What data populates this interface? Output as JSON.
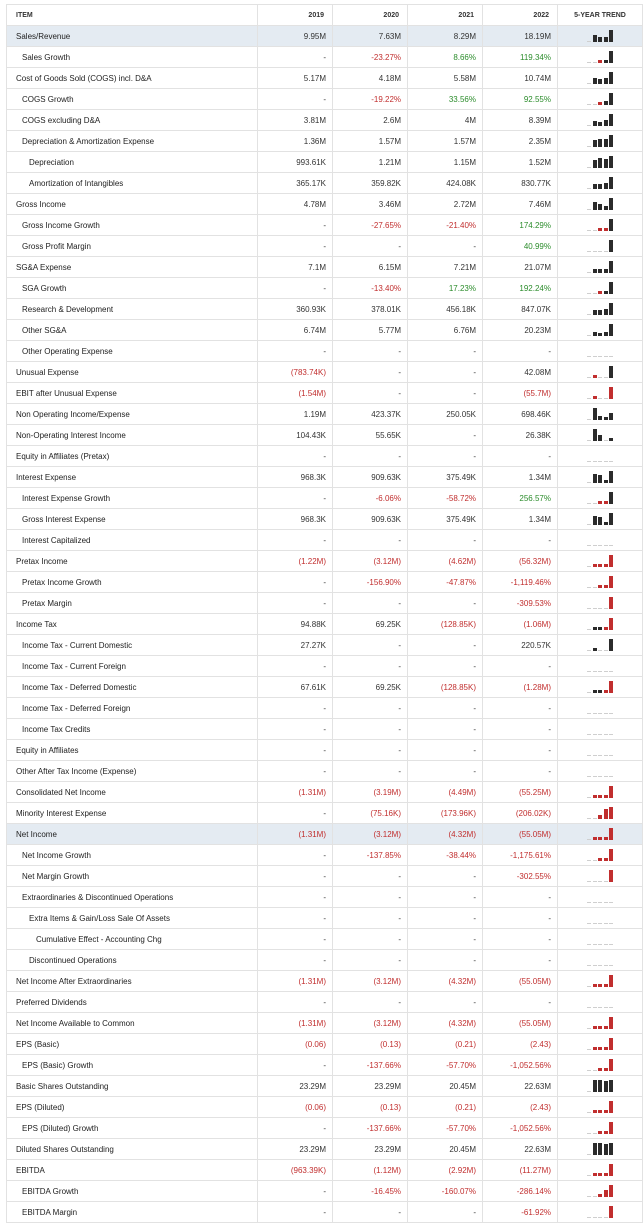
{
  "header": {
    "item": "ITEM",
    "years": [
      "2019",
      "2020",
      "2021",
      "2022"
    ],
    "trend": "5-YEAR TREND"
  },
  "rows": [
    {
      "label": "Sales/Revenue",
      "level": 0,
      "highlight": true,
      "values": [
        "9.95M",
        "7.63M",
        "8.29M",
        "18.19M"
      ],
      "spark": [
        9.95,
        7.63,
        8.29,
        18.19
      ]
    },
    {
      "label": "Sales Growth",
      "level": 1,
      "values": [
        "-",
        "-23.27%",
        "8.66%",
        "119.34%"
      ],
      "spark": [
        0,
        -23.27,
        8.66,
        119.34
      ]
    },
    {
      "label": "Cost of Goods Sold (COGS) incl. D&A",
      "level": 0,
      "values": [
        "5.17M",
        "4.18M",
        "5.58M",
        "10.74M"
      ],
      "spark": [
        5.17,
        4.18,
        5.58,
        10.74
      ]
    },
    {
      "label": "COGS Growth",
      "level": 1,
      "values": [
        "-",
        "-19.22%",
        "33.56%",
        "92.55%"
      ],
      "spark": [
        0,
        -19.22,
        33.56,
        92.55
      ]
    },
    {
      "label": "COGS excluding D&A",
      "level": 1,
      "values": [
        "3.81M",
        "2.6M",
        "4M",
        "8.39M"
      ],
      "spark": [
        3.81,
        2.6,
        4,
        8.39
      ]
    },
    {
      "label": "Depreciation & Amortization Expense",
      "level": 1,
      "values": [
        "1.36M",
        "1.57M",
        "1.57M",
        "2.35M"
      ],
      "spark": [
        1.36,
        1.57,
        1.57,
        2.35
      ]
    },
    {
      "label": "Depreciation",
      "level": 2,
      "values": [
        "993.61K",
        "1.21M",
        "1.15M",
        "1.52M"
      ],
      "spark": [
        0.99,
        1.21,
        1.15,
        1.52
      ]
    },
    {
      "label": "Amortization of Intangibles",
      "level": 2,
      "values": [
        "365.17K",
        "359.82K",
        "424.08K",
        "830.77K"
      ],
      "spark": [
        365,
        360,
        424,
        831
      ]
    },
    {
      "label": "Gross Income",
      "level": 0,
      "values": [
        "4.78M",
        "3.46M",
        "2.72M",
        "7.46M"
      ],
      "spark": [
        4.78,
        3.46,
        2.72,
        7.46
      ]
    },
    {
      "label": "Gross Income Growth",
      "level": 1,
      "values": [
        "-",
        "-27.65%",
        "-21.40%",
        "174.29%"
      ],
      "spark": [
        0,
        -27.65,
        -21.4,
        174.29
      ]
    },
    {
      "label": "Gross Profit Margin",
      "level": 1,
      "values": [
        "-",
        "-",
        "-",
        "40.99%"
      ],
      "spark": [
        0,
        0,
        0,
        40.99
      ]
    },
    {
      "label": "SG&A Expense",
      "level": 0,
      "values": [
        "7.1M",
        "6.15M",
        "7.21M",
        "21.07M"
      ],
      "spark": [
        7.1,
        6.15,
        7.21,
        21.07
      ]
    },
    {
      "label": "SGA Growth",
      "level": 1,
      "values": [
        "-",
        "-13.40%",
        "17.23%",
        "192.24%"
      ],
      "spark": [
        0,
        -13.4,
        17.23,
        192.24
      ]
    },
    {
      "label": "Research & Development",
      "level": 1,
      "values": [
        "360.93K",
        "378.01K",
        "456.18K",
        "847.07K"
      ],
      "spark": [
        361,
        378,
        456,
        847
      ]
    },
    {
      "label": "Other SG&A",
      "level": 1,
      "values": [
        "6.74M",
        "5.77M",
        "6.76M",
        "20.23M"
      ],
      "spark": [
        6.74,
        5.77,
        6.76,
        20.23
      ]
    },
    {
      "label": "Other Operating Expense",
      "level": 1,
      "values": [
        "-",
        "-",
        "-",
        "-"
      ],
      "spark": [
        0,
        0,
        0,
        0
      ]
    },
    {
      "label": "Unusual Expense",
      "level": 0,
      "values": [
        "(783.74K)",
        "-",
        "-",
        "42.08M"
      ],
      "spark": [
        -0.78,
        0,
        0,
        42.08
      ]
    },
    {
      "label": "EBIT after Unusual Expense",
      "level": 0,
      "values": [
        "(1.54M)",
        "-",
        "-",
        "(55.7M)"
      ],
      "spark": [
        -1.54,
        0,
        0,
        -55.7
      ]
    },
    {
      "label": "Non Operating Income/Expense",
      "level": 0,
      "values": [
        "1.19M",
        "423.37K",
        "250.05K",
        "698.46K"
      ],
      "spark": [
        1.19,
        0.42,
        0.25,
        0.7
      ]
    },
    {
      "label": "Non-Operating Interest Income",
      "level": 0,
      "values": [
        "104.43K",
        "55.65K",
        "-",
        "26.38K"
      ],
      "spark": [
        104.43,
        55.65,
        0,
        26.38
      ]
    },
    {
      "label": "Equity in Affiliates (Pretax)",
      "level": 0,
      "values": [
        "-",
        "-",
        "-",
        "-"
      ],
      "spark": [
        0,
        0,
        0,
        0
      ]
    },
    {
      "label": "Interest Expense",
      "level": 0,
      "values": [
        "968.3K",
        "909.63K",
        "375.49K",
        "1.34M"
      ],
      "spark": [
        968,
        910,
        375,
        1340
      ]
    },
    {
      "label": "Interest Expense Growth",
      "level": 1,
      "values": [
        "-",
        "-6.06%",
        "-58.72%",
        "256.57%"
      ],
      "spark": [
        0,
        -6.06,
        -58.72,
        256.57
      ]
    },
    {
      "label": "Gross Interest Expense",
      "level": 1,
      "values": [
        "968.3K",
        "909.63K",
        "375.49K",
        "1.34M"
      ],
      "spark": [
        968,
        910,
        375,
        1340
      ]
    },
    {
      "label": "Interest Capitalized",
      "level": 1,
      "values": [
        "-",
        "-",
        "-",
        "-"
      ],
      "spark": [
        0,
        0,
        0,
        0
      ]
    },
    {
      "label": "Pretax Income",
      "level": 0,
      "values": [
        "(1.22M)",
        "(3.12M)",
        "(4.62M)",
        "(56.32M)"
      ],
      "spark": [
        -1.22,
        -3.12,
        -4.62,
        -56.32
      ]
    },
    {
      "label": "Pretax Income Growth",
      "level": 1,
      "values": [
        "-",
        "-156.90%",
        "-47.87%",
        "-1,119.46%"
      ],
      "spark": [
        0,
        -156.9,
        -47.87,
        -1119.46
      ]
    },
    {
      "label": "Pretax Margin",
      "level": 1,
      "values": [
        "-",
        "-",
        "-",
        "-309.53%"
      ],
      "spark": [
        0,
        0,
        0,
        -309.53
      ]
    },
    {
      "label": "Income Tax",
      "level": 0,
      "values": [
        "94.88K",
        "69.25K",
        "(128.85K)",
        "(1.06M)"
      ],
      "spark": [
        94.88,
        69.25,
        -128.85,
        -1060
      ]
    },
    {
      "label": "Income Tax - Current Domestic",
      "level": 1,
      "values": [
        "27.27K",
        "-",
        "-",
        "220.57K"
      ],
      "spark": [
        27.27,
        0,
        0,
        220.57
      ]
    },
    {
      "label": "Income Tax - Current Foreign",
      "level": 1,
      "values": [
        "-",
        "-",
        "-",
        "-"
      ],
      "spark": [
        0,
        0,
        0,
        0
      ]
    },
    {
      "label": "Income Tax - Deferred Domestic",
      "level": 1,
      "values": [
        "67.61K",
        "69.25K",
        "(128.85K)",
        "(1.28M)"
      ],
      "spark": [
        67.61,
        69.25,
        -128.85,
        -1280
      ]
    },
    {
      "label": "Income Tax - Deferred Foreign",
      "level": 1,
      "values": [
        "-",
        "-",
        "-",
        "-"
      ],
      "spark": [
        0,
        0,
        0,
        0
      ]
    },
    {
      "label": "Income Tax Credits",
      "level": 1,
      "values": [
        "-",
        "-",
        "-",
        "-"
      ],
      "spark": [
        0,
        0,
        0,
        0
      ]
    },
    {
      "label": "Equity in Affiliates",
      "level": 0,
      "values": [
        "-",
        "-",
        "-",
        "-"
      ],
      "spark": [
        0,
        0,
        0,
        0
      ]
    },
    {
      "label": "Other After Tax Income (Expense)",
      "level": 0,
      "values": [
        "-",
        "-",
        "-",
        "-"
      ],
      "spark": [
        0,
        0,
        0,
        0
      ]
    },
    {
      "label": "Consolidated Net Income",
      "level": 0,
      "values": [
        "(1.31M)",
        "(3.19M)",
        "(4.49M)",
        "(55.25M)"
      ],
      "spark": [
        -1.31,
        -3.19,
        -4.49,
        -55.25
      ]
    },
    {
      "label": "Minority Interest Expense",
      "level": 0,
      "values": [
        "-",
        "(75.16K)",
        "(173.96K)",
        "(206.02K)"
      ],
      "spark": [
        0,
        -75.16,
        -173.96,
        -206.02
      ]
    },
    {
      "label": "Net Income",
      "level": 0,
      "highlight": true,
      "values": [
        "(1.31M)",
        "(3.12M)",
        "(4.32M)",
        "(55.05M)"
      ],
      "spark": [
        -1.31,
        -3.12,
        -4.32,
        -55.05
      ]
    },
    {
      "label": "Net Income Growth",
      "level": 1,
      "values": [
        "-",
        "-137.85%",
        "-38.44%",
        "-1,175.61%"
      ],
      "spark": [
        0,
        -137.85,
        -38.44,
        -1175.61
      ]
    },
    {
      "label": "Net Margin Growth",
      "level": 1,
      "values": [
        "-",
        "-",
        "-",
        "-302.55%"
      ],
      "spark": [
        0,
        0,
        0,
        -302.55
      ]
    },
    {
      "label": "Extraordinaries & Discontinued Operations",
      "level": 1,
      "values": [
        "-",
        "-",
        "-",
        "-"
      ],
      "spark": [
        0,
        0,
        0,
        0
      ]
    },
    {
      "label": "Extra Items & Gain/Loss Sale Of Assets",
      "level": 2,
      "values": [
        "-",
        "-",
        "-",
        "-"
      ],
      "spark": [
        0,
        0,
        0,
        0
      ]
    },
    {
      "label": "Cumulative Effect - Accounting Chg",
      "level": 3,
      "values": [
        "-",
        "-",
        "-",
        "-"
      ],
      "spark": [
        0,
        0,
        0,
        0
      ]
    },
    {
      "label": "Discontinued Operations",
      "level": 2,
      "values": [
        "-",
        "-",
        "-",
        "-"
      ],
      "spark": [
        0,
        0,
        0,
        0
      ]
    },
    {
      "label": "Net Income After Extraordinaries",
      "level": 0,
      "values": [
        "(1.31M)",
        "(3.12M)",
        "(4.32M)",
        "(55.05M)"
      ],
      "spark": [
        -1.31,
        -3.12,
        -4.32,
        -55.05
      ]
    },
    {
      "label": "Preferred Dividends",
      "level": 0,
      "values": [
        "-",
        "-",
        "-",
        "-"
      ],
      "spark": [
        0,
        0,
        0,
        0
      ]
    },
    {
      "label": "Net Income Available to Common",
      "level": 0,
      "values": [
        "(1.31M)",
        "(3.12M)",
        "(4.32M)",
        "(55.05M)"
      ],
      "spark": [
        -1.31,
        -3.12,
        -4.32,
        -55.05
      ]
    },
    {
      "label": "EPS (Basic)",
      "level": 0,
      "values": [
        "(0.06)",
        "(0.13)",
        "(0.21)",
        "(2.43)"
      ],
      "spark": [
        -0.06,
        -0.13,
        -0.21,
        -2.43
      ]
    },
    {
      "label": "EPS (Basic) Growth",
      "level": 1,
      "values": [
        "-",
        "-137.66%",
        "-57.70%",
        "-1,052.56%"
      ],
      "spark": [
        0,
        -137.66,
        -57.7,
        -1052.56
      ]
    },
    {
      "label": "Basic Shares Outstanding",
      "level": 0,
      "values": [
        "23.29M",
        "23.29M",
        "20.45M",
        "22.63M"
      ],
      "spark": [
        23.29,
        23.29,
        20.45,
        22.63
      ]
    },
    {
      "label": "EPS (Diluted)",
      "level": 0,
      "values": [
        "(0.06)",
        "(0.13)",
        "(0.21)",
        "(2.43)"
      ],
      "spark": [
        -0.06,
        -0.13,
        -0.21,
        -2.43
      ]
    },
    {
      "label": "EPS (Diluted) Growth",
      "level": 1,
      "values": [
        "-",
        "-137.66%",
        "-57.70%",
        "-1,052.56%"
      ],
      "spark": [
        0,
        -137.66,
        -57.7,
        -1052.56
      ]
    },
    {
      "label": "Diluted Shares Outstanding",
      "level": 0,
      "values": [
        "23.29M",
        "23.29M",
        "20.45M",
        "22.63M"
      ],
      "spark": [
        23.29,
        23.29,
        20.45,
        22.63
      ]
    },
    {
      "label": "EBITDA",
      "level": 0,
      "values": [
        "(963.39K)",
        "(1.12M)",
        "(2.92M)",
        "(11.27M)"
      ],
      "spark": [
        -0.96,
        -1.12,
        -2.92,
        -11.27
      ]
    },
    {
      "label": "EBITDA Growth",
      "level": 1,
      "values": [
        "-",
        "-16.45%",
        "-160.07%",
        "-286.14%"
      ],
      "spark": [
        0,
        -16.45,
        -160.07,
        -286.14
      ]
    },
    {
      "label": "EBITDA Margin",
      "level": 1,
      "values": [
        "-",
        "-",
        "-",
        "-61.92%"
      ],
      "spark": [
        0,
        0,
        0,
        -61.92
      ]
    }
  ]
}
